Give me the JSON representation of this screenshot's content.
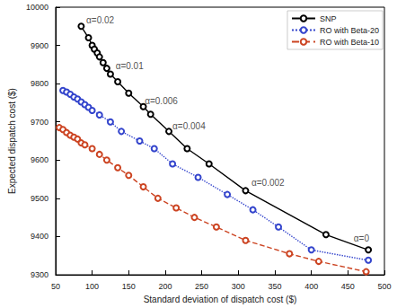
{
  "chart_data": {
    "type": "line",
    "x_label": "Standard deviation of dispatch cost ($)",
    "y_label": "Expected dispatch cost ($)",
    "xlim": [
      50,
      500
    ],
    "xticks": [
      50,
      100,
      150,
      200,
      250,
      300,
      350,
      400,
      450,
      500
    ],
    "ylim": [
      9300,
      10000
    ],
    "yticks": [
      9300,
      9400,
      9500,
      9600,
      9700,
      9800,
      9900,
      10000
    ],
    "grid": false,
    "legend": "upper right",
    "series": [
      {
        "name": "SNP",
        "color": "#000000",
        "marker": "circle",
        "line_style": "solid",
        "x": [
          85,
          95,
          100,
          103,
          107,
          110,
          115,
          120,
          125,
          135,
          150,
          170,
          180,
          205,
          230,
          260,
          310,
          420,
          478
        ],
        "values": [
          9950,
          9920,
          9900,
          9890,
          9880,
          9870,
          9855,
          9840,
          9825,
          9805,
          9775,
          9740,
          9720,
          9675,
          9630,
          9590,
          9520,
          9405,
          9365
        ]
      },
      {
        "name": "RO with Beta-20",
        "color": "#3344cc",
        "marker": "circle",
        "line_style": "dotted",
        "x": [
          60,
          65,
          70,
          75,
          80,
          85,
          90,
          95,
          100,
          110,
          125,
          140,
          165,
          185,
          210,
          245,
          285,
          320,
          355,
          400,
          478
        ],
        "values": [
          9782,
          9778,
          9772,
          9765,
          9760,
          9752,
          9745,
          9738,
          9730,
          9718,
          9700,
          9675,
          9650,
          9630,
          9590,
          9555,
          9510,
          9470,
          9425,
          9365,
          9338
        ]
      },
      {
        "name": "RO with Beta-10",
        "color": "#cc4422",
        "marker": "circle",
        "line_style": "dashed",
        "x": [
          55,
          60,
          65,
          70,
          75,
          80,
          85,
          90,
          100,
          110,
          120,
          135,
          150,
          170,
          190,
          215,
          240,
          270,
          310,
          370,
          410,
          475
        ],
        "values": [
          9685,
          9680,
          9672,
          9665,
          9660,
          9655,
          9645,
          9640,
          9630,
          9615,
          9600,
          9580,
          9560,
          9530,
          9500,
          9475,
          9450,
          9425,
          9390,
          9355,
          9335,
          9308
        ]
      }
    ],
    "annotations": [
      {
        "text": "α=0.02",
        "x": 92,
        "y": 9965
      },
      {
        "text": "α=0.01",
        "x": 132,
        "y": 9845
      },
      {
        "text": "α=0.006",
        "x": 172,
        "y": 9755
      },
      {
        "text": "α=0.004",
        "x": 210,
        "y": 9688
      },
      {
        "text": "α=0.002",
        "x": 318,
        "y": 9540
      },
      {
        "text": "α=0",
        "x": 458,
        "y": 9395
      }
    ]
  }
}
